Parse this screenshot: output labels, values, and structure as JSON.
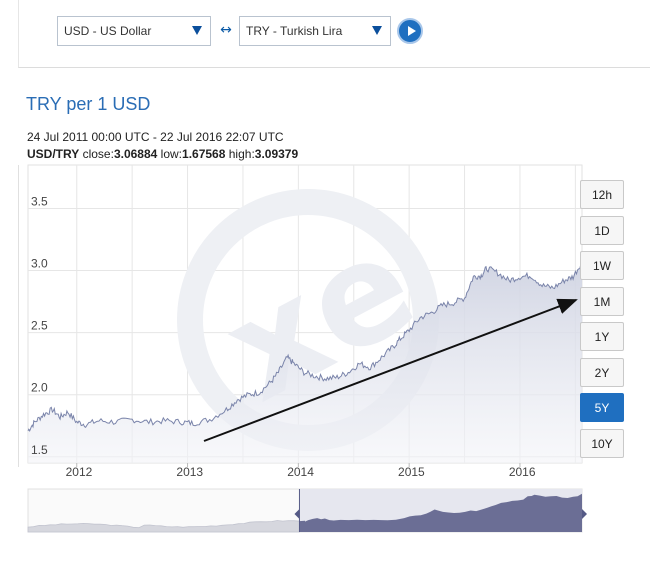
{
  "converter": {
    "from_currency": "USD - US Dollar",
    "to_currency": "TRY - Turkish Lira",
    "swap_icon": "swap-arrows-icon",
    "go_icon": "play-icon"
  },
  "chart_title": "TRY per 1 USD",
  "date_range": "24 Jul 2011 00:00 UTC - 22 Jul 2016 22:07 UTC",
  "stats": {
    "pair": "USD/TRY",
    "close_label": "close:",
    "close": "3.06884",
    "low_label": "low:",
    "low": "1.67568",
    "high_label": "high:",
    "high": "3.09379"
  },
  "range_buttons": [
    "12h",
    "1D",
    "1W",
    "1M",
    "1Y",
    "2Y",
    "5Y",
    "10Y"
  ],
  "active_range": "5Y",
  "colors": {
    "accent": "#1f6fc0",
    "area_fill": "#d9dbe8",
    "line": "#6f7aa3",
    "nav_fill": "#6b6e95"
  },
  "chart_data": {
    "type": "area",
    "title": "TRY per 1 USD",
    "xlabel": "",
    "ylabel": "",
    "x_ticks": [
      "2012",
      "2013",
      "2014",
      "2015",
      "2016"
    ],
    "y_ticks": [
      "1.5",
      "2.0",
      "2.5",
      "3.0",
      "3.5"
    ],
    "ylim": [
      1.45,
      3.85
    ],
    "xlim": [
      2011.56,
      2016.56
    ],
    "grid": true,
    "series": [
      {
        "x": [
          2011.56,
          2011.62,
          2011.7,
          2011.78,
          2011.85,
          2011.92,
          2012.0,
          2012.08,
          2012.2,
          2012.35,
          2012.5,
          2012.65,
          2012.8,
          2012.95,
          2013.05,
          2013.2,
          2013.35,
          2013.45,
          2013.55,
          2013.65,
          2013.75,
          2013.82,
          2013.9,
          2013.96,
          2014.05,
          2014.15,
          2014.25,
          2014.35,
          2014.45,
          2014.55,
          2014.65,
          2014.75,
          2014.85,
          2014.92,
          2015.0,
          2015.1,
          2015.2,
          2015.3,
          2015.4,
          2015.5,
          2015.58,
          2015.65,
          2015.7,
          2015.8,
          2015.9,
          2016.0,
          2016.1,
          2016.2,
          2016.3,
          2016.4,
          2016.48,
          2016.56
        ],
        "y": [
          1.71,
          1.78,
          1.84,
          1.88,
          1.82,
          1.86,
          1.78,
          1.76,
          1.79,
          1.78,
          1.8,
          1.78,
          1.79,
          1.78,
          1.77,
          1.8,
          1.88,
          1.96,
          2.0,
          2.02,
          2.1,
          2.18,
          2.3,
          2.25,
          2.18,
          2.15,
          2.13,
          2.14,
          2.18,
          2.25,
          2.22,
          2.3,
          2.38,
          2.45,
          2.52,
          2.62,
          2.66,
          2.72,
          2.74,
          2.78,
          2.95,
          2.96,
          3.02,
          2.98,
          2.92,
          2.95,
          2.96,
          2.88,
          2.86,
          2.92,
          2.95,
          3.07
        ]
      }
    ],
    "annotation": "trend-arrow"
  }
}
